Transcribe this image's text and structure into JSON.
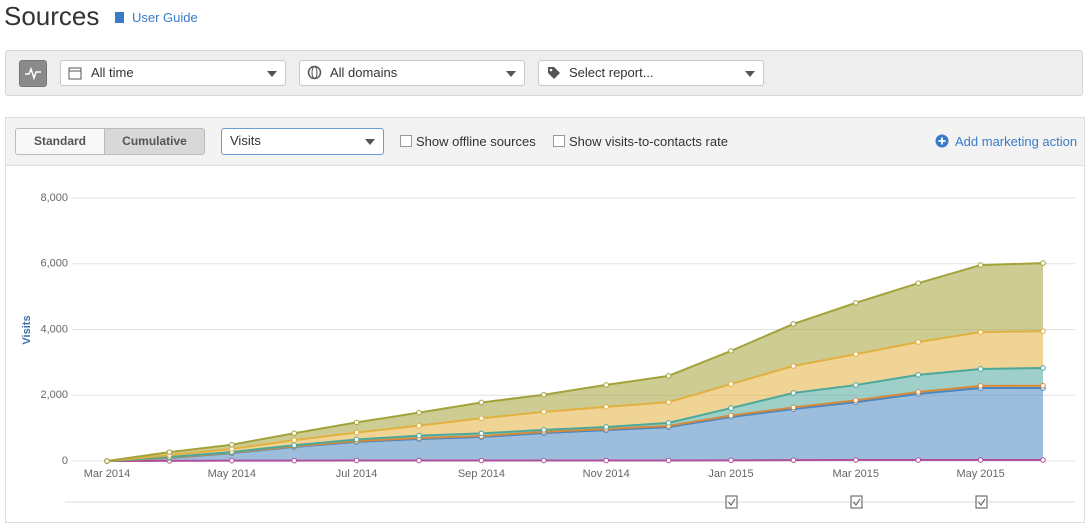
{
  "header": {
    "title": "Sources",
    "link": "User Guide"
  },
  "toolbar": {
    "filters": [
      "All time",
      "All domains",
      "Select report..."
    ]
  },
  "controls": {
    "view_buttons": [
      "Standard",
      "Cumulative"
    ],
    "metric": "Visits",
    "checkboxes": [
      "Show offline sources",
      "Show visits-to-contacts rate"
    ],
    "action": "Add marketing action"
  },
  "chart_data": {
    "type": "area",
    "stacked": true,
    "ylabel": "Visits",
    "grid": true,
    "categories": [
      "Mar 2014",
      null,
      "May 2014",
      null,
      "Jul 2014",
      null,
      "Sep 2014",
      null,
      "Nov 2014",
      null,
      "Jan 2015",
      null,
      "Mar 2015",
      null,
      "May 2015",
      null
    ],
    "ylim": [
      0,
      8000
    ],
    "yticks": [
      0,
      {
        "value": 2000,
        "label": "2,000"
      },
      {
        "value": 4000,
        "label": "4,000"
      },
      {
        "value": 6000,
        "label": "6,000"
      },
      {
        "value": 8000,
        "label": "8,000"
      }
    ],
    "series": [
      {
        "color": "#b04f9c",
        "values": [
          0,
          5,
          10,
          10,
          15,
          15,
          15,
          15,
          15,
          15,
          20,
          25,
          30,
          30,
          30,
          30
        ]
      },
      {
        "color": "#4a86bf",
        "values": [
          0,
          85,
          230,
          420,
          565,
          655,
          715,
          835,
          925,
          1015,
          1320,
          1555,
          1760,
          2010,
          2190,
          2190
        ]
      },
      {
        "color": "#d58a3c",
        "values": [
          0,
          10,
          15,
          20,
          25,
          30,
          30,
          35,
          35,
          40,
          45,
          50,
          55,
          60,
          65,
          70
        ]
      },
      {
        "color": "#4ea89a",
        "values": [
          0,
          20,
          20,
          30,
          50,
          70,
          80,
          60,
          60,
          90,
          225,
          440,
          465,
          520,
          515,
          540
        ]
      },
      {
        "color": "#e1b040",
        "values": [
          0,
          60,
          95,
          155,
          210,
          305,
          460,
          550,
          610,
          630,
          730,
          820,
          940,
          1000,
          1120,
          1120
        ]
      },
      {
        "color": "#a3a33a",
        "values": [
          0,
          90,
          125,
          210,
          310,
          395,
          480,
          520,
          670,
          800,
          1010,
          1280,
          1560,
          1790,
          2040,
          2070
        ]
      }
    ]
  }
}
